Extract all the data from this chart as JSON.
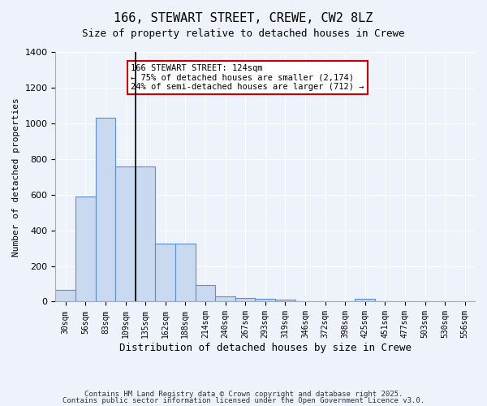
{
  "title1": "166, STEWART STREET, CREWE, CW2 8LZ",
  "title2": "Size of property relative to detached houses in Crewe",
  "xlabel": "Distribution of detached houses by size in Crewe",
  "ylabel": "Number of detached properties",
  "categories": [
    "30sqm",
    "56sqm",
    "83sqm",
    "109sqm",
    "135sqm",
    "162sqm",
    "188sqm",
    "214sqm",
    "240sqm",
    "267sqm",
    "293sqm",
    "319sqm",
    "346sqm",
    "372sqm",
    "398sqm",
    "425sqm",
    "451sqm",
    "477sqm",
    "503sqm",
    "530sqm",
    "556sqm"
  ],
  "values": [
    65,
    590,
    1030,
    760,
    760,
    325,
    325,
    95,
    30,
    20,
    15,
    10,
    0,
    0,
    0,
    15,
    0,
    0,
    0,
    0,
    0
  ],
  "bar_color": "#c9d9f0",
  "bar_edge_color": "#5b8ed6",
  "background_color": "#eef2fa",
  "grid_color": "#ffffff",
  "vline_x": 3.5,
  "annotation_text": "166 STEWART STREET: 124sqm\n← 75% of detached houses are smaller (2,174)\n24% of semi-detached houses are larger (712) →",
  "annotation_box_color": "#ffffff",
  "annotation_box_edge": "#cc0000",
  "ylim": [
    0,
    1400
  ],
  "yticks": [
    0,
    200,
    400,
    600,
    800,
    1000,
    1200,
    1400
  ],
  "footer1": "Contains HM Land Registry data © Crown copyright and database right 2025.",
  "footer2": "Contains public sector information licensed under the Open Government Licence v3.0."
}
